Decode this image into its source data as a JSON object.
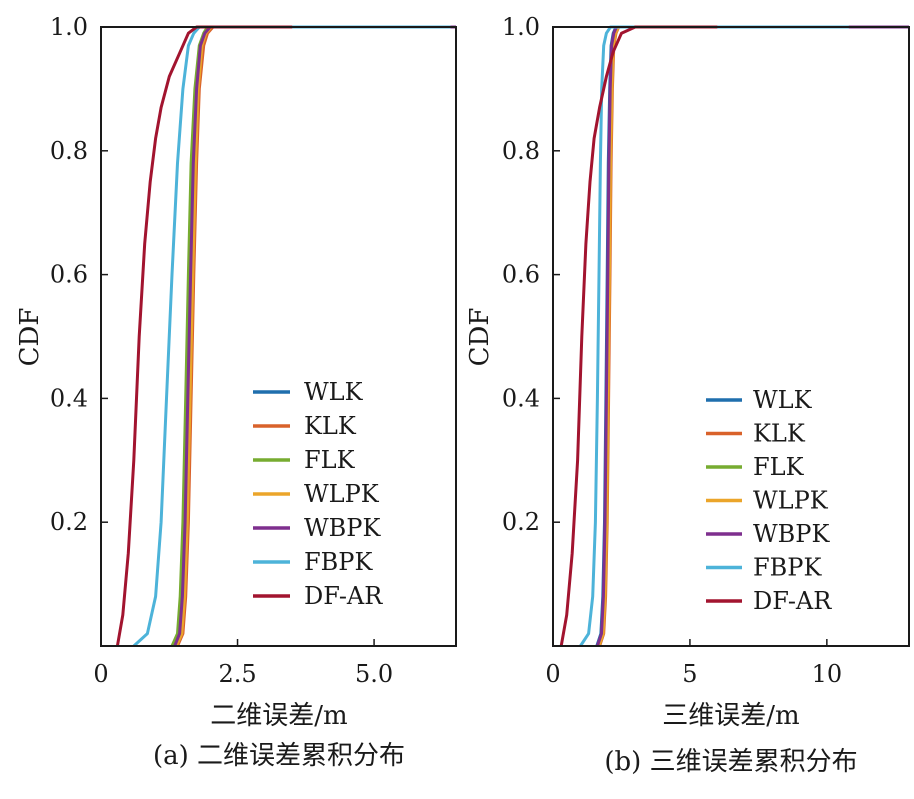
{
  "chart_data": [
    {
      "type": "line",
      "panel": "a",
      "caption": "(a) 二维误差累积分布",
      "xlabel": "二维误差/m",
      "ylabel": "CDF",
      "xlim": [
        0,
        6.5
      ],
      "ylim": [
        0,
        1.0
      ],
      "xticks": [
        0,
        2.5,
        5.0
      ],
      "xtick_labels": [
        "0",
        "2.5",
        "5.0"
      ],
      "yticks": [
        0.2,
        0.4,
        0.6,
        0.8,
        1.0
      ],
      "ytick_labels": [
        "0.2",
        "0.4",
        "0.6",
        "0.8",
        "1.0"
      ],
      "legend_position": "lower-right",
      "series": [
        {
          "name": "WLK",
          "color": "#1f6fad",
          "x": [
            1.35,
            1.45,
            1.5,
            1.55,
            1.6,
            1.65,
            1.7,
            1.75,
            1.82,
            1.9,
            2.0,
            3.0,
            6.5
          ],
          "y": [
            0,
            0.02,
            0.08,
            0.2,
            0.4,
            0.6,
            0.78,
            0.9,
            0.97,
            0.99,
            1.0,
            1.0,
            1.0
          ]
        },
        {
          "name": "KLK",
          "color": "#d9622b",
          "x": [
            1.4,
            1.5,
            1.55,
            1.6,
            1.65,
            1.7,
            1.75,
            1.8,
            1.88,
            1.95,
            2.05,
            3.0,
            6.5
          ],
          "y": [
            0,
            0.02,
            0.08,
            0.2,
            0.4,
            0.6,
            0.78,
            0.9,
            0.97,
            0.99,
            1.0,
            1.0,
            1.0
          ]
        },
        {
          "name": "FLK",
          "color": "#77ac30",
          "x": [
            1.3,
            1.4,
            1.45,
            1.5,
            1.55,
            1.6,
            1.65,
            1.72,
            1.8,
            1.88,
            1.95,
            3.0,
            6.5
          ],
          "y": [
            0,
            0.02,
            0.08,
            0.2,
            0.4,
            0.6,
            0.78,
            0.9,
            0.97,
            0.99,
            1.0,
            1.0,
            1.0
          ]
        },
        {
          "name": "WLPK",
          "color": "#eba52a",
          "x": [
            1.38,
            1.48,
            1.53,
            1.58,
            1.63,
            1.68,
            1.73,
            1.78,
            1.85,
            1.92,
            2.02,
            3.0,
            6.5
          ],
          "y": [
            0,
            0.02,
            0.08,
            0.2,
            0.4,
            0.6,
            0.78,
            0.9,
            0.97,
            0.99,
            1.0,
            1.0,
            1.0
          ]
        },
        {
          "name": "WBPK",
          "color": "#7e2f8e",
          "x": [
            1.35,
            1.44,
            1.49,
            1.54,
            1.59,
            1.64,
            1.69,
            1.75,
            1.82,
            1.9,
            2.0,
            3.0,
            6.5
          ],
          "y": [
            0,
            0.02,
            0.08,
            0.2,
            0.4,
            0.6,
            0.78,
            0.9,
            0.97,
            0.99,
            1.0,
            1.0,
            1.0
          ]
        },
        {
          "name": "FBPK",
          "color": "#4db3d9",
          "x": [
            0.6,
            0.85,
            1.0,
            1.1,
            1.2,
            1.3,
            1.4,
            1.5,
            1.6,
            1.7,
            1.8,
            3.0,
            6.4
          ],
          "y": [
            0,
            0.02,
            0.08,
            0.2,
            0.4,
            0.6,
            0.78,
            0.9,
            0.97,
            0.99,
            1.0,
            1.0,
            1.0
          ]
        },
        {
          "name": "DF-AR",
          "color": "#a2142f",
          "x": [
            0.3,
            0.4,
            0.5,
            0.6,
            0.7,
            0.8,
            0.9,
            1.0,
            1.1,
            1.25,
            1.45,
            1.6,
            1.75,
            2.5,
            3.5
          ],
          "y": [
            0,
            0.05,
            0.15,
            0.3,
            0.5,
            0.65,
            0.75,
            0.82,
            0.87,
            0.92,
            0.96,
            0.99,
            1.0,
            1.0,
            1.0
          ]
        }
      ]
    },
    {
      "type": "line",
      "panel": "b",
      "caption": "(b) 三维误差累积分布",
      "xlabel": "三维误差/m",
      "ylabel": "CDF",
      "xlim": [
        0,
        13
      ],
      "ylim": [
        0,
        1.0
      ],
      "xticks": [
        0,
        5,
        10
      ],
      "xtick_labels": [
        "0",
        "5",
        "10"
      ],
      "yticks": [
        0.2,
        0.4,
        0.6,
        0.8,
        1.0
      ],
      "ytick_labels": [
        "0.2",
        "0.4",
        "0.6",
        "0.8",
        "1.0"
      ],
      "legend_position": "lower-right",
      "series": [
        {
          "name": "WLK",
          "color": "#1f6fad",
          "x": [
            1.6,
            1.75,
            1.82,
            1.88,
            1.93,
            1.98,
            2.02,
            2.07,
            2.12,
            2.2,
            2.3,
            4.0,
            13
          ],
          "y": [
            0,
            0.02,
            0.08,
            0.2,
            0.4,
            0.6,
            0.78,
            0.9,
            0.97,
            0.99,
            1.0,
            1.0,
            1.0
          ]
        },
        {
          "name": "KLK",
          "color": "#d9622b",
          "x": [
            1.7,
            1.85,
            1.92,
            1.98,
            2.03,
            2.08,
            2.12,
            2.17,
            2.22,
            2.3,
            2.4,
            4.0,
            13
          ],
          "y": [
            0,
            0.02,
            0.08,
            0.2,
            0.4,
            0.6,
            0.78,
            0.9,
            0.97,
            0.99,
            1.0,
            1.0,
            1.0
          ]
        },
        {
          "name": "FLK",
          "color": "#77ac30",
          "x": [
            1.65,
            1.8,
            1.87,
            1.93,
            1.98,
            2.03,
            2.07,
            2.12,
            2.17,
            2.25,
            2.35,
            4.0,
            13
          ],
          "y": [
            0,
            0.02,
            0.08,
            0.2,
            0.4,
            0.6,
            0.78,
            0.9,
            0.97,
            0.99,
            1.0,
            1.0,
            1.0
          ]
        },
        {
          "name": "WLPK",
          "color": "#eba52a",
          "x": [
            1.68,
            1.83,
            1.9,
            1.96,
            2.01,
            2.06,
            2.1,
            2.15,
            2.2,
            2.28,
            2.38,
            4.0,
            13
          ],
          "y": [
            0,
            0.02,
            0.08,
            0.2,
            0.4,
            0.6,
            0.78,
            0.9,
            0.97,
            0.99,
            1.0,
            1.0,
            1.0
          ]
        },
        {
          "name": "WBPK",
          "color": "#7e2f8e",
          "x": [
            1.62,
            1.77,
            1.84,
            1.9,
            1.95,
            2.0,
            2.04,
            2.09,
            2.14,
            2.22,
            2.32,
            6.0,
            13
          ],
          "y": [
            0,
            0.02,
            0.08,
            0.2,
            0.4,
            0.6,
            0.78,
            0.9,
            0.97,
            0.99,
            1.0,
            1.0,
            1.0
          ]
        },
        {
          "name": "FBPK",
          "color": "#4db3d9",
          "x": [
            1.0,
            1.3,
            1.45,
            1.55,
            1.62,
            1.68,
            1.73,
            1.78,
            1.85,
            1.95,
            2.1,
            6.0,
            10.8
          ],
          "y": [
            0,
            0.02,
            0.08,
            0.2,
            0.4,
            0.6,
            0.78,
            0.9,
            0.97,
            0.99,
            1.0,
            1.0,
            1.0
          ]
        },
        {
          "name": "DF-AR",
          "color": "#a2142f",
          "x": [
            0.3,
            0.5,
            0.7,
            0.9,
            1.05,
            1.2,
            1.35,
            1.5,
            1.7,
            1.95,
            2.2,
            2.5,
            3.0,
            4.0,
            6.0
          ],
          "y": [
            0,
            0.05,
            0.15,
            0.3,
            0.5,
            0.65,
            0.75,
            0.82,
            0.87,
            0.92,
            0.96,
            0.99,
            1.0,
            1.0,
            1.0
          ]
        }
      ]
    }
  ]
}
